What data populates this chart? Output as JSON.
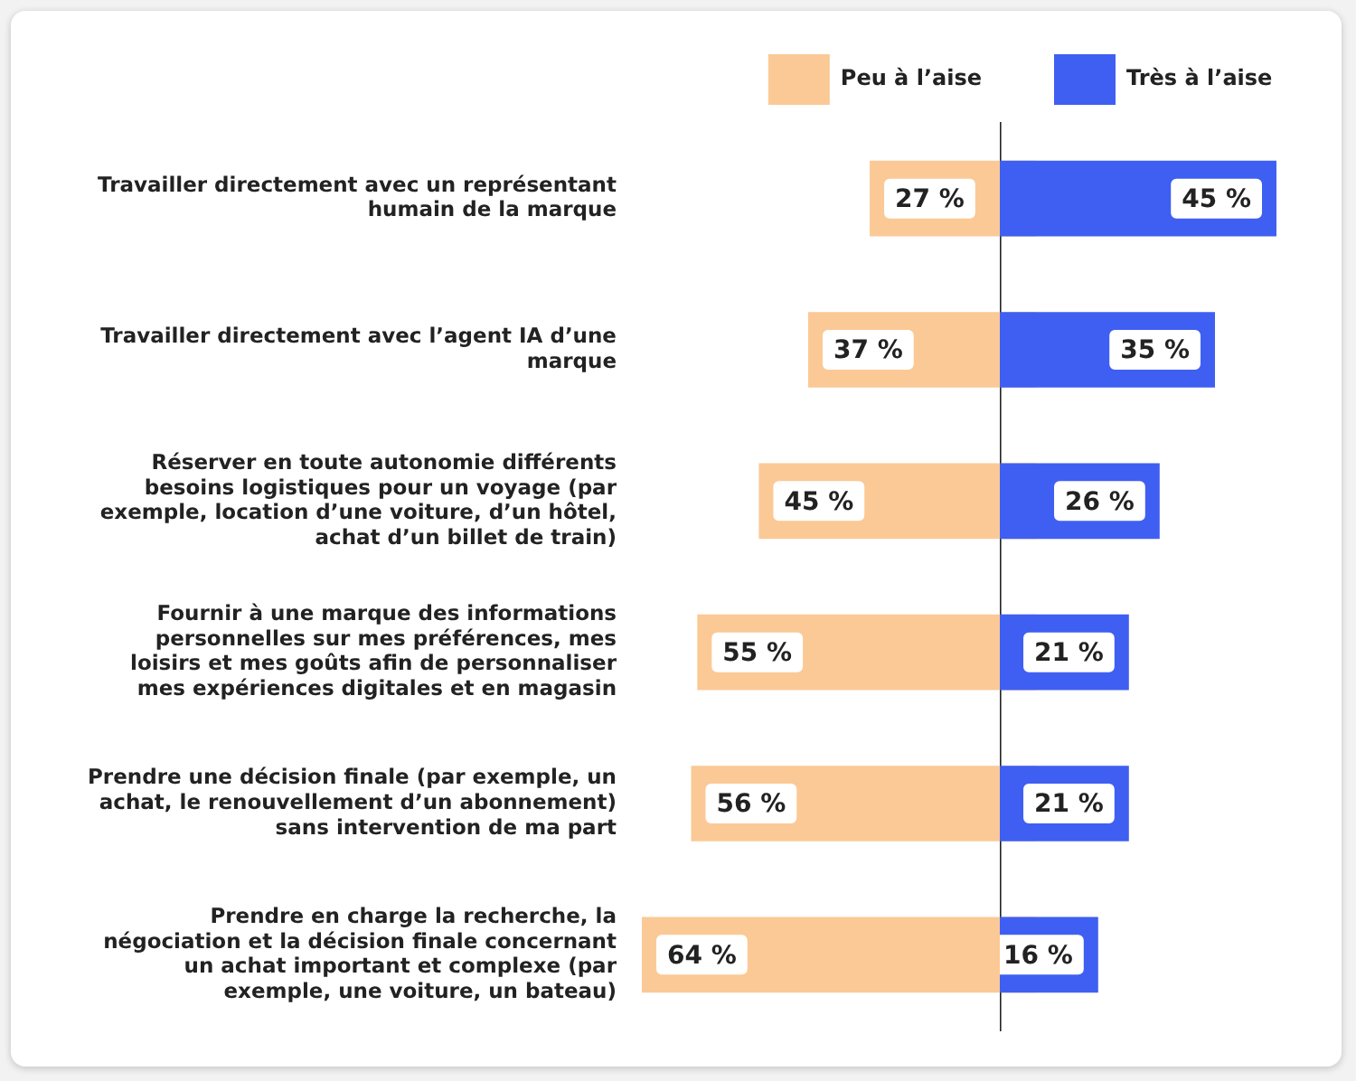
{
  "chart_data": [
    {
      "type": "bar",
      "orientation": "horizontal",
      "legend": "top",
      "tick_labels": "y",
      "categories": [
        "Travailler directement avec un représentant humain de la marque",
        "Travailler directement avec l’agent IA d’une marque",
        "Réserver en toute autonomie différents besoins logistiques pour un voyage (par exemple, location d’une voiture, d’un hôtel, achat d’un billet de train)",
        "Fournir à une marque des informations personnelles sur mes préférences, mes loisirs et mes goûts afin de personnaliser mes expériences digitales et en magasin",
        "Prendre une décision finale (par exemple, un achat, le renouvellement d’un abonnement) sans intervention de ma part",
        "Prendre en charge la recherche, la négociation et la décision finale concernant un achat important et complexe (par exemple, une voiture, un bateau)"
      ],
      "xlim": [
        64,
        0
      ],
      "series": [
        {
          "name": "Peu à l’aise",
          "color": "#fbc996",
          "values": [
            27,
            37,
            45,
            55,
            56,
            64
          ],
          "value_labels": [
            "27 %",
            "37 %",
            "45 %",
            "55 %",
            "56 %",
            "64 %"
          ]
        }
      ]
    },
    {
      "type": "bar",
      "orientation": "horizontal",
      "legend": "top",
      "tick_labels": false,
      "categories": [
        null,
        null,
        null,
        null,
        null,
        null
      ],
      "xlim": [
        0,
        45
      ],
      "series": [
        {
          "name": "Très à l’aise",
          "color": "#3f5ff2",
          "values": [
            45,
            35,
            26,
            21,
            21,
            16
          ],
          "value_labels": [
            "45 %",
            "35 %",
            "26 %",
            "21 %",
            "21 %",
            "16 %"
          ]
        }
      ]
    }
  ]
}
